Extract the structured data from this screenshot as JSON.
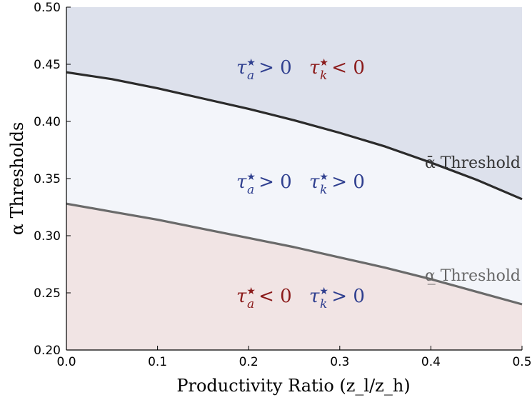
{
  "chart_data": {
    "type": "area",
    "xlabel": "Productivity Ratio (z_l/z_h)",
    "ylabel": "α Thresholds",
    "xlim": [
      0.0,
      0.5
    ],
    "ylim": [
      0.2,
      0.5
    ],
    "xticks": [
      "0.0",
      "0.1",
      "0.2",
      "0.3",
      "0.4",
      "0.5"
    ],
    "yticks": [
      "0.20",
      "0.25",
      "0.30",
      "0.35",
      "0.40",
      "0.45",
      "0.50"
    ],
    "grid": false,
    "series": [
      {
        "name": "ᾱ Threshold",
        "color": "#2b2b2b",
        "x": [
          0.0,
          0.05,
          0.1,
          0.15,
          0.2,
          0.25,
          0.3,
          0.35,
          0.4,
          0.45,
          0.5
        ],
        "y": [
          0.443,
          0.437,
          0.429,
          0.42,
          0.411,
          0.401,
          0.39,
          0.378,
          0.364,
          0.349,
          0.332
        ]
      },
      {
        "name": "α̲ Threshold",
        "color": "#6a6a6a",
        "x": [
          0.0,
          0.05,
          0.1,
          0.15,
          0.2,
          0.25,
          0.3,
          0.35,
          0.4,
          0.45,
          0.5
        ],
        "y": [
          0.328,
          0.321,
          0.314,
          0.306,
          0.298,
          0.29,
          0.281,
          0.272,
          0.262,
          0.251,
          0.24
        ]
      }
    ],
    "regions": [
      {
        "name": "upper",
        "fill": "#dde1ec",
        "label_a": "τ*a > 0",
        "label_a_color": "#2f3f8f",
        "label_k": "τ*k < 0",
        "label_k_color": "#8b1a1a"
      },
      {
        "name": "middle",
        "fill": "#f3f5fa",
        "label_a": "τ*a > 0",
        "label_a_color": "#2f3f8f",
        "label_k": "τ*k > 0",
        "label_k_color": "#2f3f8f"
      },
      {
        "name": "lower",
        "fill": "#f1e4e4",
        "label_a": "τ*a < 0",
        "label_a_color": "#8b1a1a",
        "label_k": "τ*k > 0",
        "label_k_color": "#2f3f8f"
      }
    ]
  }
}
